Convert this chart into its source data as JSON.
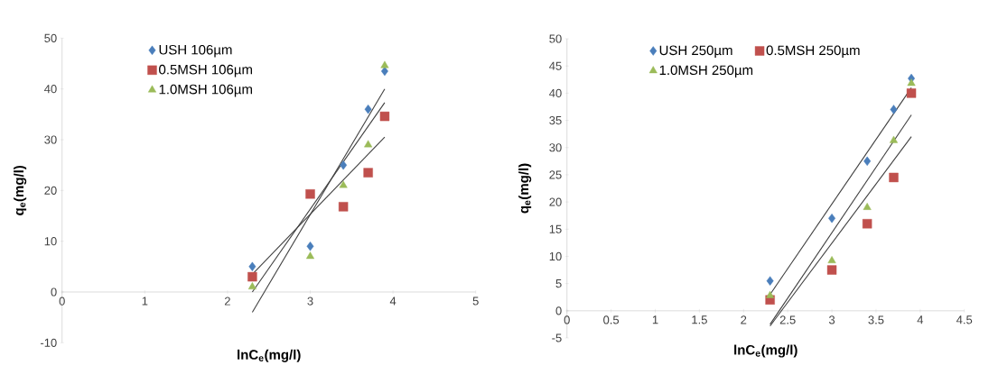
{
  "chart_data": [
    {
      "type": "scatter",
      "xlabel": "lnC$_{e}$(mg/l)",
      "ylabel": "q$_{e}$(mg/l)",
      "xlim": [
        0,
        5
      ],
      "ylim": [
        -10,
        50
      ],
      "xticks": [
        0,
        1,
        2,
        3,
        4,
        5
      ],
      "yticks": [
        -10,
        0,
        10,
        20,
        30,
        40,
        50
      ],
      "legend": "top left",
      "series": [
        {
          "name": "USH 106µm",
          "color": "#4a7ebb",
          "marker": "diamond",
          "x": [
            2.3,
            3.0,
            3.4,
            3.7,
            3.9
          ],
          "values": [
            5,
            9,
            25,
            36,
            43.5
          ]
        },
        {
          "name": "0.5MSH 106µm",
          "color": "#c0504d",
          "marker": "square",
          "x": [
            2.3,
            3.0,
            3.4,
            3.7,
            3.9
          ],
          "values": [
            3,
            19.3,
            16.8,
            23.5,
            34.6
          ]
        },
        {
          "name": "1.0MSH 106µm",
          "color": "#9bbb59",
          "marker": "triangle",
          "x": [
            2.3,
            3.0,
            3.4,
            3.7,
            3.9
          ],
          "values": [
            1,
            7,
            21,
            29,
            44.6
          ]
        },
        {
          "type": "line",
          "color": "#404040",
          "x": [
            2.3,
            3.9
          ],
          "values": [
            -4,
            40
          ]
        },
        {
          "type": "line",
          "color": "#404040",
          "x": [
            2.3,
            3.9
          ],
          "values": [
            0,
            37.3
          ]
        },
        {
          "type": "line",
          "color": "#404040",
          "x": [
            2.3,
            3.9
          ],
          "values": [
            3.5,
            30.5
          ]
        }
      ]
    },
    {
      "type": "scatter",
      "xlabel": "lnC$_{e}$(mg/l)",
      "ylabel": "q$_{e}$(mg/l)",
      "xlim": [
        0,
        4.5
      ],
      "ylim": [
        -5,
        50
      ],
      "xticks": [
        0,
        0.5,
        1,
        1.5,
        2,
        2.5,
        3,
        3.5,
        4,
        4.5
      ],
      "yticks": [
        -5,
        0,
        5,
        10,
        15,
        20,
        25,
        30,
        35,
        40,
        45,
        50
      ],
      "legend": "top left",
      "series": [
        {
          "name": "USH 250µm",
          "color": "#4a7ebb",
          "marker": "diamond",
          "x": [
            2.3,
            3.0,
            3.4,
            3.7,
            3.9
          ],
          "values": [
            5.5,
            17,
            27.5,
            37,
            42.7
          ]
        },
        {
          "name": "0.5MSH 250µm",
          "color": "#c0504d",
          "marker": "square",
          "x": [
            2.3,
            3.0,
            3.4,
            3.7,
            3.9
          ],
          "values": [
            2,
            7.5,
            16,
            24.5,
            40
          ]
        },
        {
          "name": "1.0MSH 250µm",
          "color": "#9bbb59",
          "marker": "triangle",
          "x": [
            2.3,
            3.0,
            3.4,
            3.7,
            3.9
          ],
          "values": [
            2.8,
            9.2,
            19,
            31.3,
            41.8
          ]
        },
        {
          "type": "line",
          "color": "#404040",
          "x": [
            2.3,
            3.9
          ],
          "values": [
            3,
            41
          ]
        },
        {
          "type": "line",
          "color": "#404040",
          "x": [
            2.3,
            3.9
          ],
          "values": [
            -2.5,
            36
          ]
        },
        {
          "type": "line",
          "color": "#404040",
          "x": [
            2.3,
            3.9
          ],
          "values": [
            -2.8,
            32
          ]
        }
      ]
    }
  ]
}
